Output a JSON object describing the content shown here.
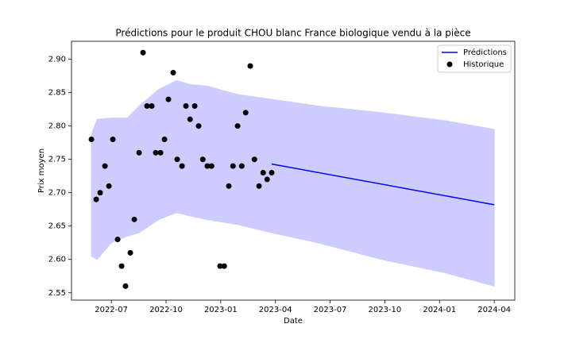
{
  "chart_data": {
    "type": "line",
    "title": "Prédictions pour le produit CHOU blanc France biologique vendu à la pièce",
    "x_label": "Date",
    "y_label": "Prix moyen",
    "xlim": [
      2022.318,
      2024.344
    ],
    "ylim": [
      2.539,
      2.927
    ],
    "xticks": [
      {
        "value": 2022.5,
        "label": "2022-07"
      },
      {
        "value": 2022.75,
        "label": "2022-10"
      },
      {
        "value": 2023.0,
        "label": "2023-01"
      },
      {
        "value": 2023.25,
        "label": "2023-04"
      },
      {
        "value": 2023.5,
        "label": "2023-07"
      },
      {
        "value": 2023.75,
        "label": "2023-10"
      },
      {
        "value": 2024.0,
        "label": "2024-01"
      },
      {
        "value": 2024.25,
        "label": "2024-04"
      }
    ],
    "yticks": [
      2.55,
      {
        "value": 2.6,
        "label": "2.60"
      },
      2.65,
      {
        "value": 2.7,
        "label": "2.70"
      },
      2.75,
      {
        "value": 2.8,
        "label": "2.80"
      },
      2.85,
      {
        "value": 2.9,
        "label": "2.90"
      }
    ],
    "legend": "upper right",
    "band": {
      "color": "#ccccff",
      "x": [
        2022.409,
        2022.435,
        2022.5,
        2022.573,
        2022.627,
        2022.718,
        2022.798,
        2022.863,
        2022.936,
        2023.081,
        2023.233,
        2023.444,
        2023.735,
        2024.025,
        2024.25
      ],
      "upper": [
        2.787,
        2.81,
        2.812,
        2.812,
        2.83,
        2.855,
        2.868,
        2.862,
        2.86,
        2.847,
        2.84,
        2.83,
        2.82,
        2.808,
        2.795
      ],
      "lower": [
        2.605,
        2.6,
        2.625,
        2.635,
        2.64,
        2.66,
        2.67,
        2.665,
        2.66,
        2.652,
        2.64,
        2.625,
        2.6,
        2.58,
        2.56
      ]
    },
    "series": [
      {
        "name": "Prédictions",
        "color": "#0000ff",
        "style": "line",
        "x": [
          2023.233,
          2024.25
        ],
        "values": [
          2.743,
          2.682
        ]
      },
      {
        "name": "Historique",
        "color": "#000000",
        "style": "marker",
        "x": [
          2022.409,
          2022.431,
          2022.449,
          2022.471,
          2022.489,
          2022.507,
          2022.529,
          2022.547,
          2022.565,
          2022.587,
          2022.605,
          2022.627,
          2022.645,
          2022.663,
          2022.685,
          2022.703,
          2022.725,
          2022.743,
          2022.761,
          2022.783,
          2022.801,
          2022.823,
          2022.841,
          2022.86,
          2022.881,
          2022.899,
          2022.918,
          2022.939,
          2022.958,
          2022.997,
          2023.016,
          2023.037,
          2023.056,
          2023.077,
          2023.096,
          2023.114,
          2023.135,
          2023.154,
          2023.175,
          2023.194,
          2023.212,
          2023.233
        ],
        "values": [
          2.78,
          2.69,
          2.7,
          2.74,
          2.71,
          2.78,
          2.63,
          2.59,
          2.56,
          2.61,
          2.66,
          2.76,
          2.91,
          2.83,
          2.83,
          2.76,
          2.76,
          2.78,
          2.84,
          2.88,
          2.75,
          2.74,
          2.83,
          2.81,
          2.83,
          2.8,
          2.75,
          2.74,
          2.74,
          2.59,
          2.59,
          2.71,
          2.74,
          2.8,
          2.74,
          2.82,
          2.89,
          2.75,
          2.71,
          2.73,
          2.72,
          2.73
        ]
      }
    ]
  }
}
